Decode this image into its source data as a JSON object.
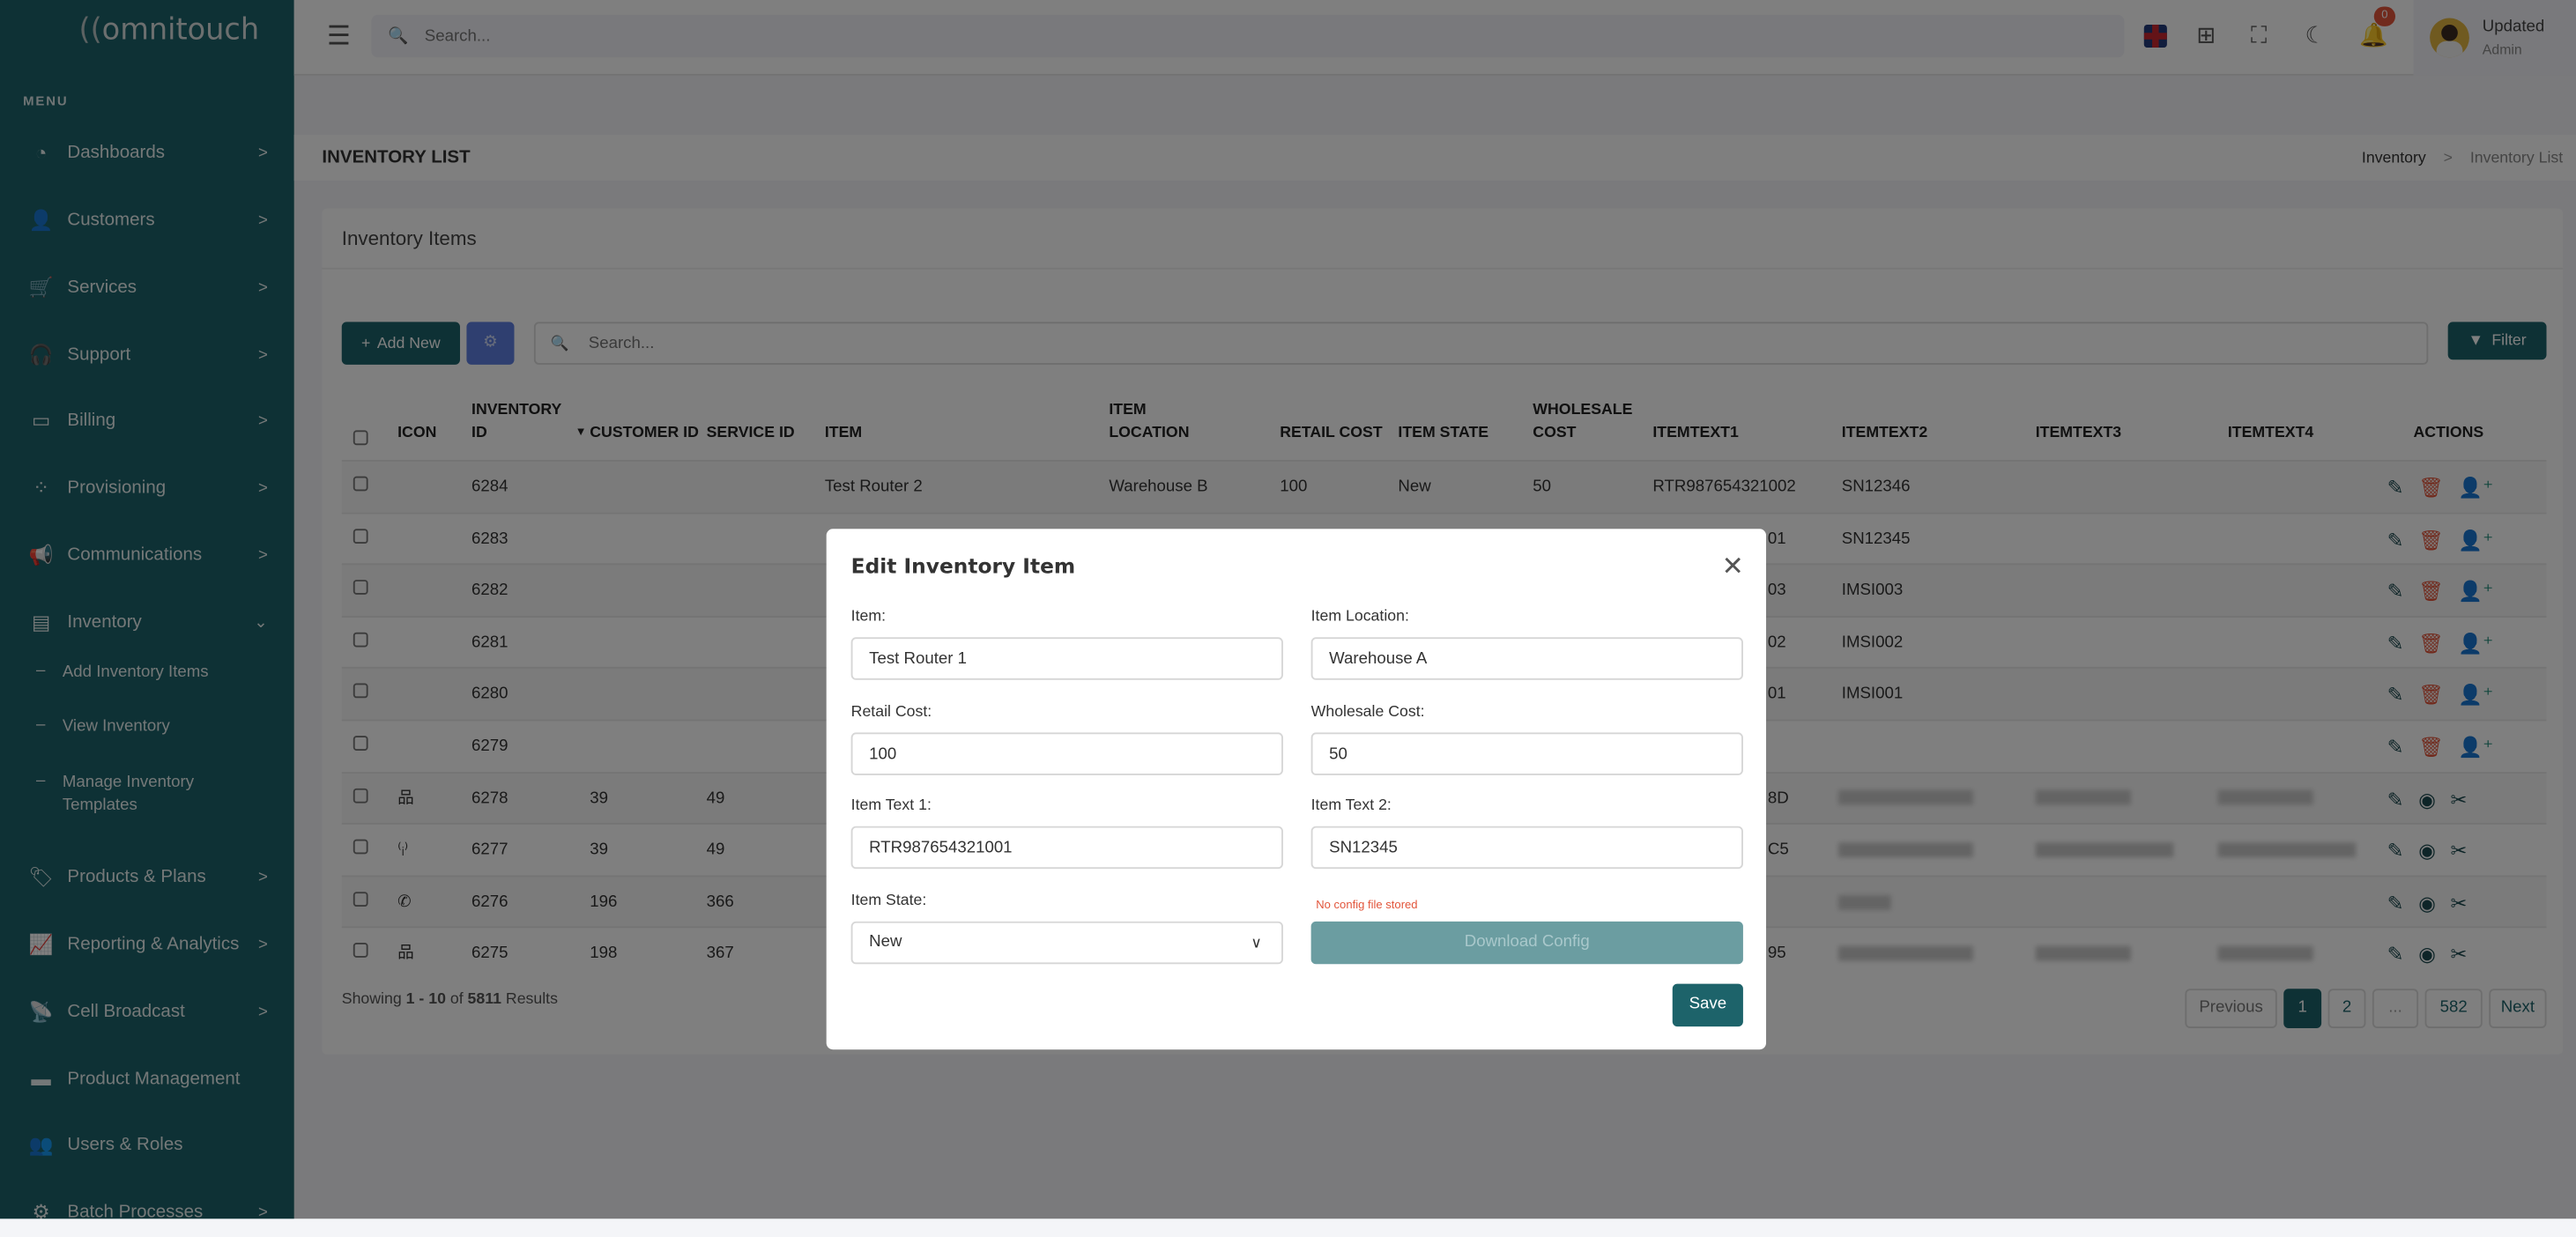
{
  "brand": {
    "logo_text": "omnitouch",
    "accent": "#1d636a",
    "danger": "#e2553b"
  },
  "sidebar": {
    "menu_label": "MENU",
    "items": [
      {
        "label": "Dashboards",
        "icon": "gauge-icon",
        "glyph": "◔",
        "chev": ">"
      },
      {
        "label": "Customers",
        "icon": "user-icon",
        "glyph": "👤",
        "chev": ">"
      },
      {
        "label": "Services",
        "icon": "cart-icon",
        "glyph": "🛒",
        "chev": ">"
      },
      {
        "label": "Support",
        "icon": "headset-icon",
        "glyph": "🎧",
        "chev": ">"
      },
      {
        "label": "Billing",
        "icon": "money-icon",
        "glyph": "▭",
        "chev": ">"
      },
      {
        "label": "Provisioning",
        "icon": "spinner-icon",
        "glyph": "⁘",
        "chev": ">"
      },
      {
        "label": "Communications",
        "icon": "megaphone-icon",
        "glyph": "📢",
        "chev": ">"
      },
      {
        "label": "Inventory",
        "icon": "warehouse-icon",
        "glyph": "▤",
        "chev": "⌄"
      },
      {
        "label": "Products & Plans",
        "icon": "tags-icon",
        "glyph": "🏷",
        "chev": ">"
      },
      {
        "label": "Reporting & Analytics",
        "icon": "chart-line-icon",
        "glyph": "📈",
        "chev": ">"
      },
      {
        "label": "Cell Broadcast",
        "icon": "tower-broadcast-icon",
        "glyph": "📡",
        "chev": ">"
      },
      {
        "label": "Product Management",
        "icon": "box-icon",
        "glyph": "▬",
        "chev": ""
      },
      {
        "label": "Users & Roles",
        "icon": "users-icon",
        "glyph": "👥",
        "chev": ""
      },
      {
        "label": "Batch Processes",
        "icon": "gears-icon",
        "glyph": "⚙",
        "chev": ">"
      }
    ],
    "inventory_sub": [
      "Add Inventory Items",
      "View Inventory",
      "Manage Inventory Templates"
    ]
  },
  "topbar": {
    "search_placeholder": "Search...",
    "notifications": "0",
    "user_name": "Updated",
    "user_role": "Admin"
  },
  "page": {
    "title": "INVENTORY LIST",
    "breadcrumb": [
      "Inventory",
      "Inventory List"
    ],
    "breadcrumb_sep": ">"
  },
  "card": {
    "title": "Inventory Items",
    "add_new": "Add New",
    "search_placeholder": "Search...",
    "filter": "Filter"
  },
  "table": {
    "headers": [
      "ICON",
      "INVENTORY ID",
      "CUSTOMER ID",
      "SERVICE ID",
      "ITEM",
      "ITEM LOCATION",
      "RETAIL COST",
      "ITEM STATE",
      "WHOLESALE COST",
      "ITEMTEXT1",
      "ITEMTEXT2",
      "ITEMTEXT3",
      "ITEMTEXT4",
      "ACTIONS"
    ],
    "rows": [
      {
        "icon": "",
        "id": "6284",
        "cust": "",
        "svc": "",
        "item": "Test Router 2",
        "loc": "Warehouse B",
        "retail": "100",
        "state": "New",
        "whole": "50",
        "t1": "RTR987654321002",
        "t2": "SN12346",
        "actions": "edit-delete-assign"
      },
      {
        "icon": "",
        "id": "6283",
        "t1": "01",
        "t2": "SN12345",
        "partial": true,
        "actions": "edit-delete-assign"
      },
      {
        "icon": "",
        "id": "6282",
        "t1": "03",
        "t2": "IMSI003",
        "partial": true,
        "actions": "edit-delete-assign"
      },
      {
        "icon": "",
        "id": "6281",
        "t1": "02",
        "t2": "IMSI002",
        "partial": true,
        "actions": "edit-delete-assign"
      },
      {
        "icon": "",
        "id": "6280",
        "t1": "01",
        "t2": "IMSI001",
        "partial": true,
        "actions": "edit-delete-assign"
      },
      {
        "icon": "",
        "id": "6279",
        "t1": "",
        "t2": "",
        "actions": "edit-delete-assign"
      },
      {
        "icon": "network-icon",
        "id": "6278",
        "cust": "39",
        "svc": "49",
        "t1": "8D",
        "partial": true,
        "blurred": true,
        "actions": "edit-view-tools"
      },
      {
        "icon": "antenna-icon",
        "id": "6277",
        "cust": "39",
        "svc": "49",
        "t1": "C5",
        "partial": true,
        "blurred": true,
        "actions": "edit-view-tools"
      },
      {
        "icon": "phone-icon",
        "id": "6276",
        "cust": "196",
        "svc": "366",
        "t1": "",
        "partial": true,
        "blurred": true,
        "actions": "edit-view-tools"
      },
      {
        "icon": "network-icon",
        "id": "6275",
        "cust": "198",
        "svc": "367",
        "t1": "95",
        "partial": true,
        "blurred": true,
        "actions": "edit-view-tools"
      }
    ]
  },
  "footer": {
    "showing_prefix": "Showing ",
    "range": "1 - 10",
    "of": " of ",
    "total": "5811",
    "suffix": " Results"
  },
  "pagination": {
    "previous": "Previous",
    "pages": [
      "1",
      "2",
      "...",
      "582"
    ],
    "current": "1",
    "next": "Next"
  },
  "modal": {
    "title": "Edit Inventory Item",
    "item_label": "Item:",
    "item_value": "Test Router 1",
    "location_label": "Item Location:",
    "location_value": "Warehouse A",
    "retail_label": "Retail Cost:",
    "retail_value": "100",
    "wholesale_label": "Wholesale Cost:",
    "wholesale_value": "50",
    "text1_label": "Item Text 1:",
    "text1_value": "RTR987654321001",
    "text2_label": "Item Text 2:",
    "text2_value": "SN12345",
    "state_label": "Item State:",
    "state_value": "New",
    "no_config": "No config file stored",
    "download": "Download Config",
    "save": "Save"
  }
}
